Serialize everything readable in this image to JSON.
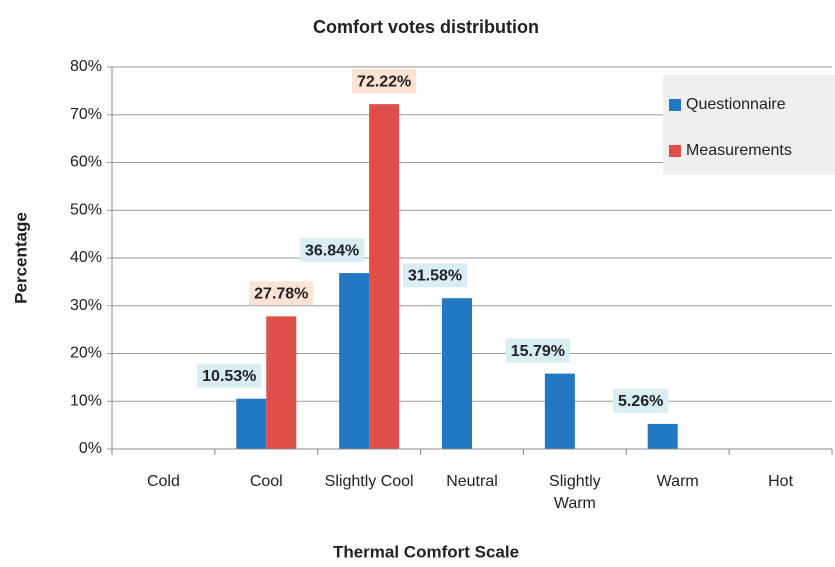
{
  "chart_data": {
    "type": "bar",
    "title": "Comfort votes distribution",
    "x_label": "Thermal Comfort Scale",
    "y_label": "Percentage",
    "categories": [
      "Cold",
      "Cool",
      "Slightly Cool",
      "Neutral",
      "Slightly Warm",
      "Warm",
      "Hot"
    ],
    "series": [
      {
        "name": "Questionnaire",
        "color": "#1f78c1",
        "label_bg": "#d8eef4",
        "values": [
          null,
          10.53,
          36.84,
          31.58,
          15.79,
          5.26,
          null
        ],
        "value_labels": [
          null,
          "10.53%",
          "36.84%",
          "31.58%",
          "15.79%",
          "5.26%",
          null
        ]
      },
      {
        "name": "Measurements",
        "color": "#e04e4a",
        "label_bg": "#fce3d3",
        "values": [
          null,
          27.78,
          72.22,
          null,
          null,
          null,
          null
        ],
        "value_labels": [
          null,
          "27.78%",
          "72.22%",
          null,
          null,
          null,
          null
        ]
      }
    ],
    "ylim": [
      0,
      80
    ],
    "yticks": [
      {
        "value": 0,
        "label": "0%"
      },
      {
        "value": 10,
        "label": "10%"
      },
      {
        "value": 20,
        "label": "20%"
      },
      {
        "value": 30,
        "label": "30%"
      },
      {
        "value": 40,
        "label": "40%"
      },
      {
        "value": 50,
        "label": "50%"
      },
      {
        "value": 60,
        "label": "60%"
      },
      {
        "value": 70,
        "label": "70%"
      },
      {
        "value": 80,
        "label": "80%"
      }
    ],
    "grid": true,
    "legend": "top-right"
  }
}
